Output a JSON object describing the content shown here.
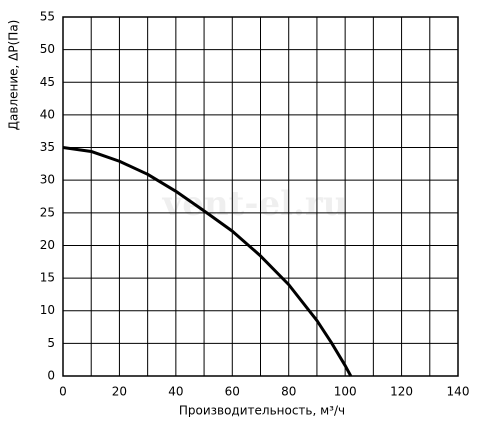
{
  "chart_data": {
    "type": "line",
    "x_label": "Производительность, м³/ч",
    "y_label": "Давление, ΔP(Па)",
    "watermark": "vent-el.ru",
    "x": [
      0,
      10,
      20,
      30,
      40,
      50,
      60,
      70,
      80,
      90,
      95,
      100,
      102
    ],
    "series": [
      {
        "color": "#000000",
        "values": [
          35,
          34.4,
          32.9,
          30.9,
          28.3,
          25.3,
          22.2,
          18.4,
          14,
          8.5,
          5.2,
          1.6,
          0
        ]
      }
    ],
    "xlim": [
      0,
      140
    ],
    "ylim": [
      0,
      55
    ],
    "xticks": [
      0,
      20,
      40,
      60,
      80,
      100,
      120,
      140
    ],
    "x_minor_ticks": [
      10,
      30,
      50,
      70,
      90,
      110,
      130
    ],
    "yticks": [
      0,
      5,
      10,
      15,
      20,
      25,
      30,
      35,
      40,
      45,
      50,
      55
    ],
    "grid": true
  }
}
